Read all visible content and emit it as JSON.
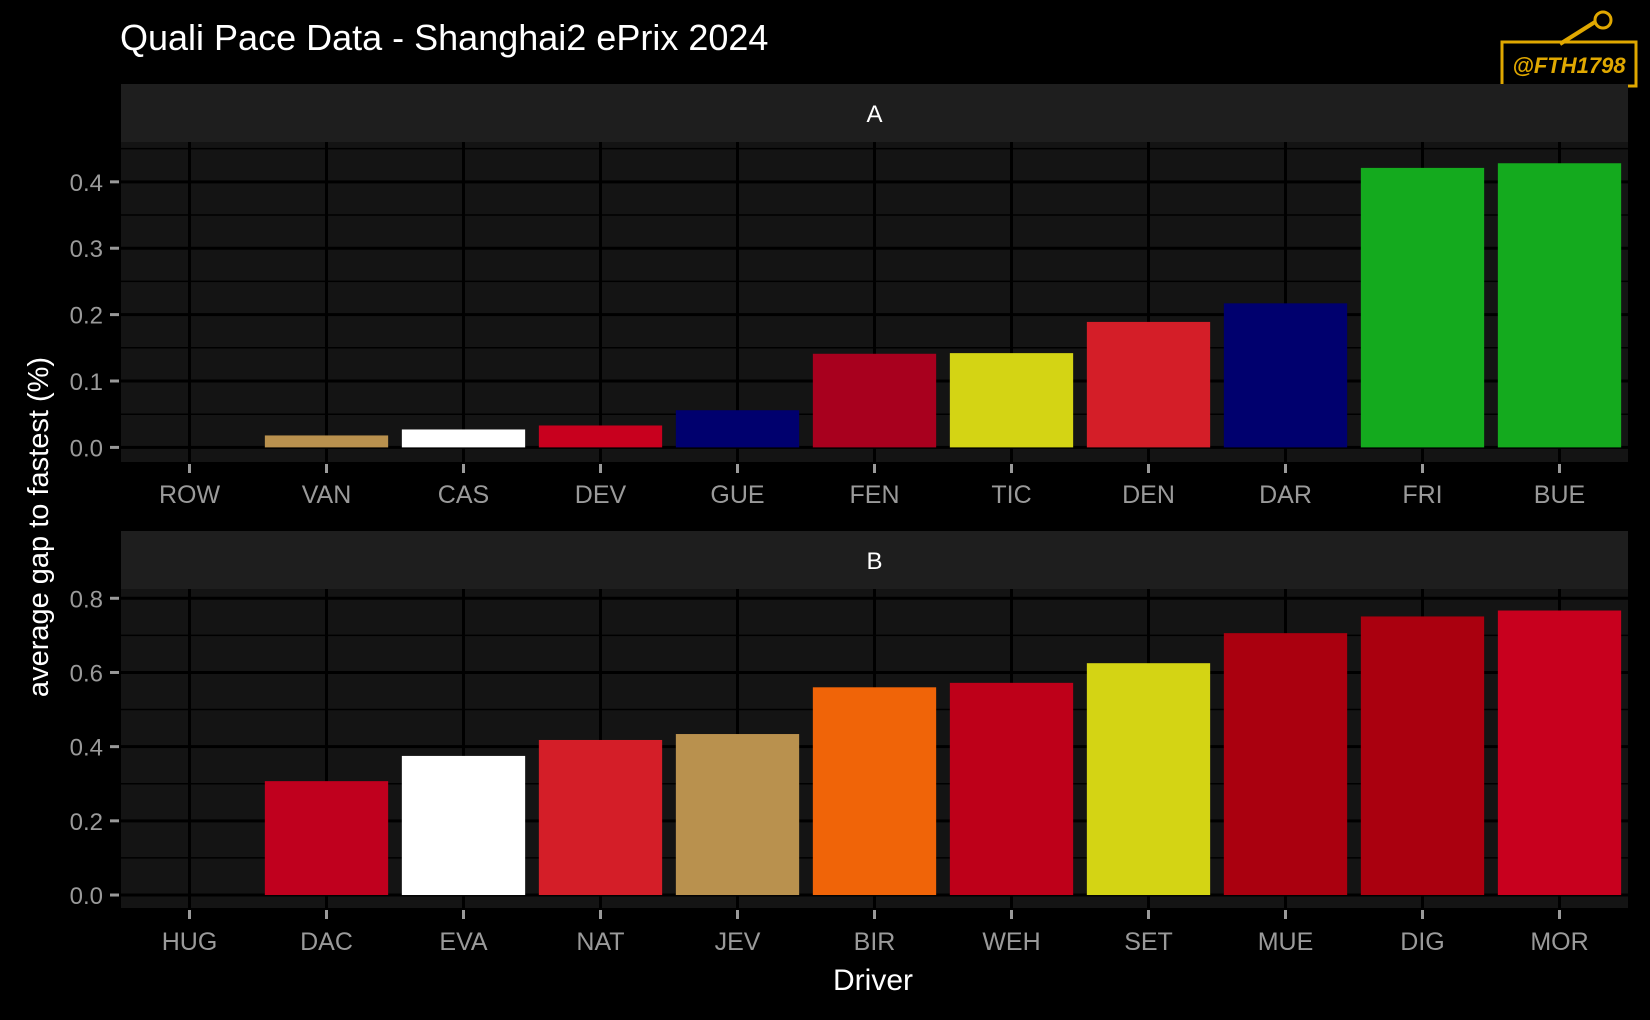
{
  "title": "Quali Pace Data - Shanghai2 ePrix 2024",
  "watermark": "@FTH1798",
  "colors": {
    "background": "#000000",
    "panel": "#141414",
    "strip": "#1e1e1e",
    "grid": "#000000",
    "text": "#ffffff",
    "tick_text": "#9a9a9a",
    "watermark": "#e0a800"
  },
  "chart_data": {
    "type": "bar",
    "xlabel": "Driver",
    "ylabel": "average gap to fastest (%)",
    "facets": [
      {
        "label": "A",
        "categories": [
          "ROW",
          "VAN",
          "CAS",
          "DEV",
          "GUE",
          "FEN",
          "TIC",
          "DEN",
          "DAR",
          "FRI",
          "BUE"
        ],
        "values": [
          0.0,
          0.018,
          0.027,
          0.033,
          0.056,
          0.141,
          0.142,
          0.189,
          0.217,
          0.421,
          0.428
        ],
        "colors": [
          "#c0c0c0",
          "#b9914e",
          "#ffffff",
          "#c8001e",
          "#00006e",
          "#a8001e",
          "#d4d414",
          "#d41e28",
          "#00006e",
          "#14aa1e",
          "#14aa1e"
        ],
        "ylim": [
          -0.022,
          0.46
        ],
        "yticks": [
          0.0,
          0.1,
          0.2,
          0.3,
          0.4
        ],
        "ytick_labels": [
          "0.0",
          "0.1",
          "0.2",
          "0.3",
          "0.4"
        ]
      },
      {
        "label": "B",
        "categories": [
          "HUG",
          "DAC",
          "EVA",
          "NAT",
          "JEV",
          "BIR",
          "WEH",
          "SET",
          "MUE",
          "DIG",
          "MOR"
        ],
        "values": [
          0.0,
          0.307,
          0.375,
          0.418,
          0.434,
          0.56,
          0.572,
          0.625,
          0.706,
          0.751,
          0.767
        ],
        "colors": [
          "#c0c0c0",
          "#c0001e",
          "#ffffff",
          "#d41e28",
          "#b9914e",
          "#f06408",
          "#be0019",
          "#d4d414",
          "#aa000f",
          "#aa000f",
          "#c8001e"
        ],
        "ylim": [
          -0.035,
          0.825
        ],
        "yticks": [
          0.0,
          0.2,
          0.4,
          0.6,
          0.8
        ],
        "ytick_labels": [
          "0.0",
          "0.2",
          "0.4",
          "0.6",
          "0.8"
        ]
      }
    ],
    "grid": true,
    "legend": "none"
  }
}
